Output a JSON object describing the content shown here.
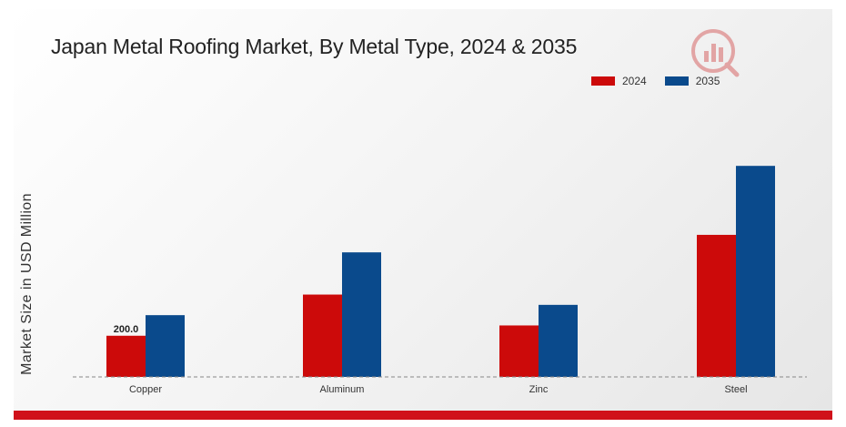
{
  "colors": {
    "series_2024": "#cc0a0a",
    "series_2035": "#0a4a8c",
    "accent_bar": "#d0111a"
  },
  "icons": {
    "logo": "chart-logo-watermark-icon"
  },
  "chart_data": {
    "type": "bar",
    "title": "Japan Metal Roofing Market, By Metal Type, 2024 & 2035",
    "xlabel": "",
    "ylabel": "Market Size in USD Million",
    "categories": [
      "Copper",
      "Aluminum",
      "Zinc",
      "Steel"
    ],
    "series": [
      {
        "name": "2024",
        "values": [
          200.0,
          400.0,
          250.0,
          690.0
        ]
      },
      {
        "name": "2035",
        "values": [
          300.0,
          605.0,
          350.0,
          1025.0
        ]
      }
    ],
    "data_labels": [
      {
        "series": 0,
        "index": 0,
        "text": "200.0"
      }
    ],
    "ylim": [
      0,
      1300
    ],
    "grid": false,
    "baseline": "dashed",
    "legend_position": "top-right"
  }
}
